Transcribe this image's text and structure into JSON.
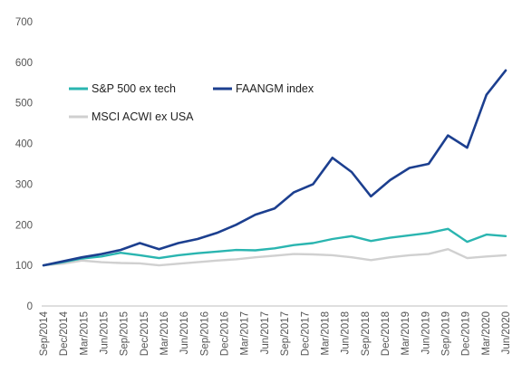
{
  "chart_data": {
    "type": "line",
    "title": "",
    "xlabel": "",
    "ylabel": "",
    "ylim": [
      0,
      700
    ],
    "y_ticks": [
      0,
      100,
      200,
      300,
      400,
      500,
      600,
      700
    ],
    "x_tick_labels": [
      "Sep/2014",
      "Dec/2014",
      "Mar/2015",
      "Jun/2015",
      "Sep/2015",
      "Dec/2015",
      "Mar/2016",
      "Jun/2016",
      "Sep/2016",
      "Dec/2016",
      "Mar/2017",
      "Jun/2017",
      "Sep/2017",
      "Dec/2017",
      "Mar/2018",
      "Jun/2018",
      "Sep/2018",
      "Dec/2018",
      "Mar/2019",
      "Jun/2019",
      "Sep/2019",
      "Dec/2019",
      "Mar/2020",
      "Jun/2020"
    ],
    "grid": false,
    "legend_position": "upper-left",
    "series": [
      {
        "name": "S&P 500 ex tech",
        "color": "#2ab5b0",
        "values": [
          100,
          108,
          117,
          122,
          131,
          125,
          118,
          125,
          130,
          134,
          138,
          137,
          142,
          150,
          155,
          165,
          172,
          160,
          168,
          174,
          180,
          190,
          158,
          176,
          172
        ]
      },
      {
        "name": "FAANGM index",
        "color": "#1c3f8f",
        "values": [
          100,
          110,
          120,
          128,
          138,
          155,
          140,
          155,
          165,
          180,
          200,
          225,
          240,
          280,
          300,
          365,
          330,
          270,
          310,
          340,
          350,
          420,
          390,
          520,
          580
        ]
      },
      {
        "name": "MSCI ACWI ex USA",
        "color": "#d0d0d0",
        "values": [
          100,
          104,
          112,
          108,
          106,
          105,
          100,
          104,
          108,
          112,
          115,
          120,
          124,
          128,
          127,
          125,
          120,
          113,
          120,
          125,
          128,
          140,
          118,
          122,
          125
        ]
      }
    ]
  }
}
